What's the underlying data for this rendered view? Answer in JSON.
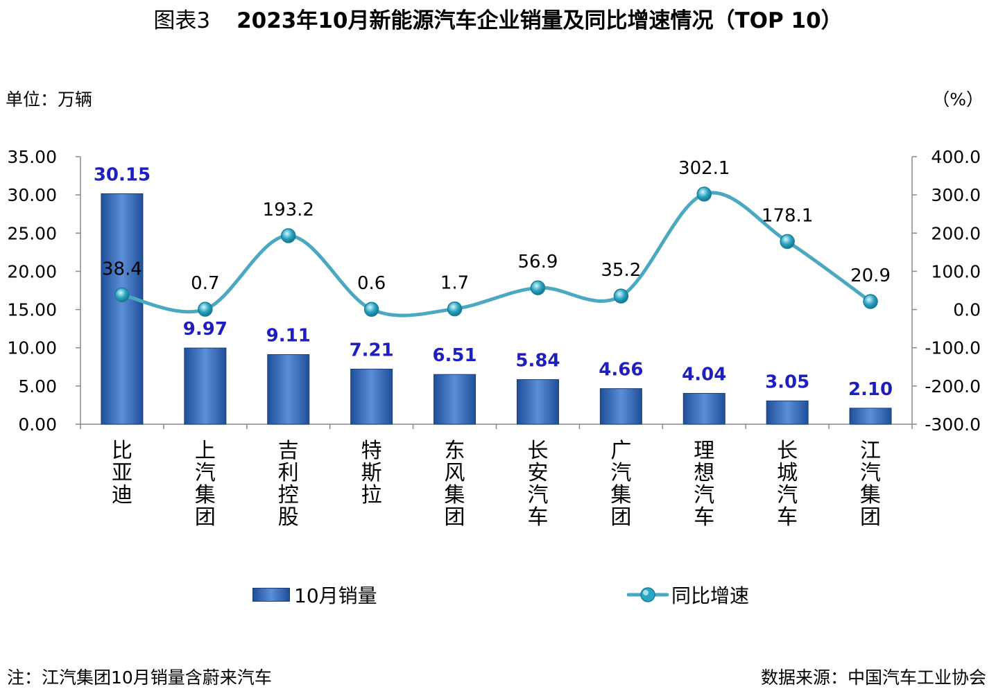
{
  "header": {
    "figure_label": "图表3",
    "title": "2023年10月新能源汽车企业销量及同比增速情况（TOP 10）"
  },
  "unit_left": "单位：万辆",
  "unit_right": "（%）",
  "footer": {
    "note": "注：江汽集团10月销量含蔚来汽车",
    "source": "数据来源：中国汽车工业协会"
  },
  "legend": {
    "bar_label": "10月销量",
    "line_label": "同比增速"
  },
  "colors": {
    "bar_dark": "#1f4e99",
    "bar_light": "#5b8fd8",
    "bar_label": "#1f1fc0",
    "line": "#4aa8c0",
    "marker": "#2aa6c4"
  },
  "chart_data": {
    "type": "bar",
    "categories": [
      "比亚迪",
      "上汽集团",
      "吉利控股",
      "特斯拉",
      "东风集团",
      "长安汽车",
      "广汽集团",
      "理想汽车",
      "长城汽车",
      "江汽集团"
    ],
    "series": [
      {
        "name": "10月销量",
        "type": "bar",
        "axis": "left",
        "values": [
          30.15,
          9.97,
          9.11,
          7.21,
          6.51,
          5.84,
          4.66,
          4.04,
          3.05,
          2.1
        ],
        "value_labels": [
          "30.15",
          "9.97",
          "9.11",
          "7.21",
          "6.51",
          "5.84",
          "4.66",
          "4.04",
          "3.05",
          "2.10"
        ]
      },
      {
        "name": "同比增速",
        "type": "line",
        "axis": "right",
        "values": [
          38.4,
          0.7,
          193.2,
          0.6,
          1.7,
          56.9,
          35.2,
          302.1,
          178.1,
          20.9
        ],
        "value_labels": [
          "38.4",
          "0.7",
          "193.2",
          "0.6",
          "1.7",
          "56.9",
          "35.2",
          "302.1",
          "178.1",
          "20.9"
        ]
      }
    ],
    "y_left": {
      "lim": [
        0,
        35
      ],
      "ticks": [
        "0.00",
        "5.00",
        "10.00",
        "15.00",
        "20.00",
        "25.00",
        "30.00",
        "35.00"
      ]
    },
    "y_right": {
      "lim": [
        -300,
        400
      ],
      "ticks": [
        "-300.0",
        "-200.0",
        "-100.0",
        "0.0",
        "100.0",
        "200.0",
        "300.0",
        "400.0"
      ]
    },
    "grid": false,
    "legend_position": "bottom"
  }
}
